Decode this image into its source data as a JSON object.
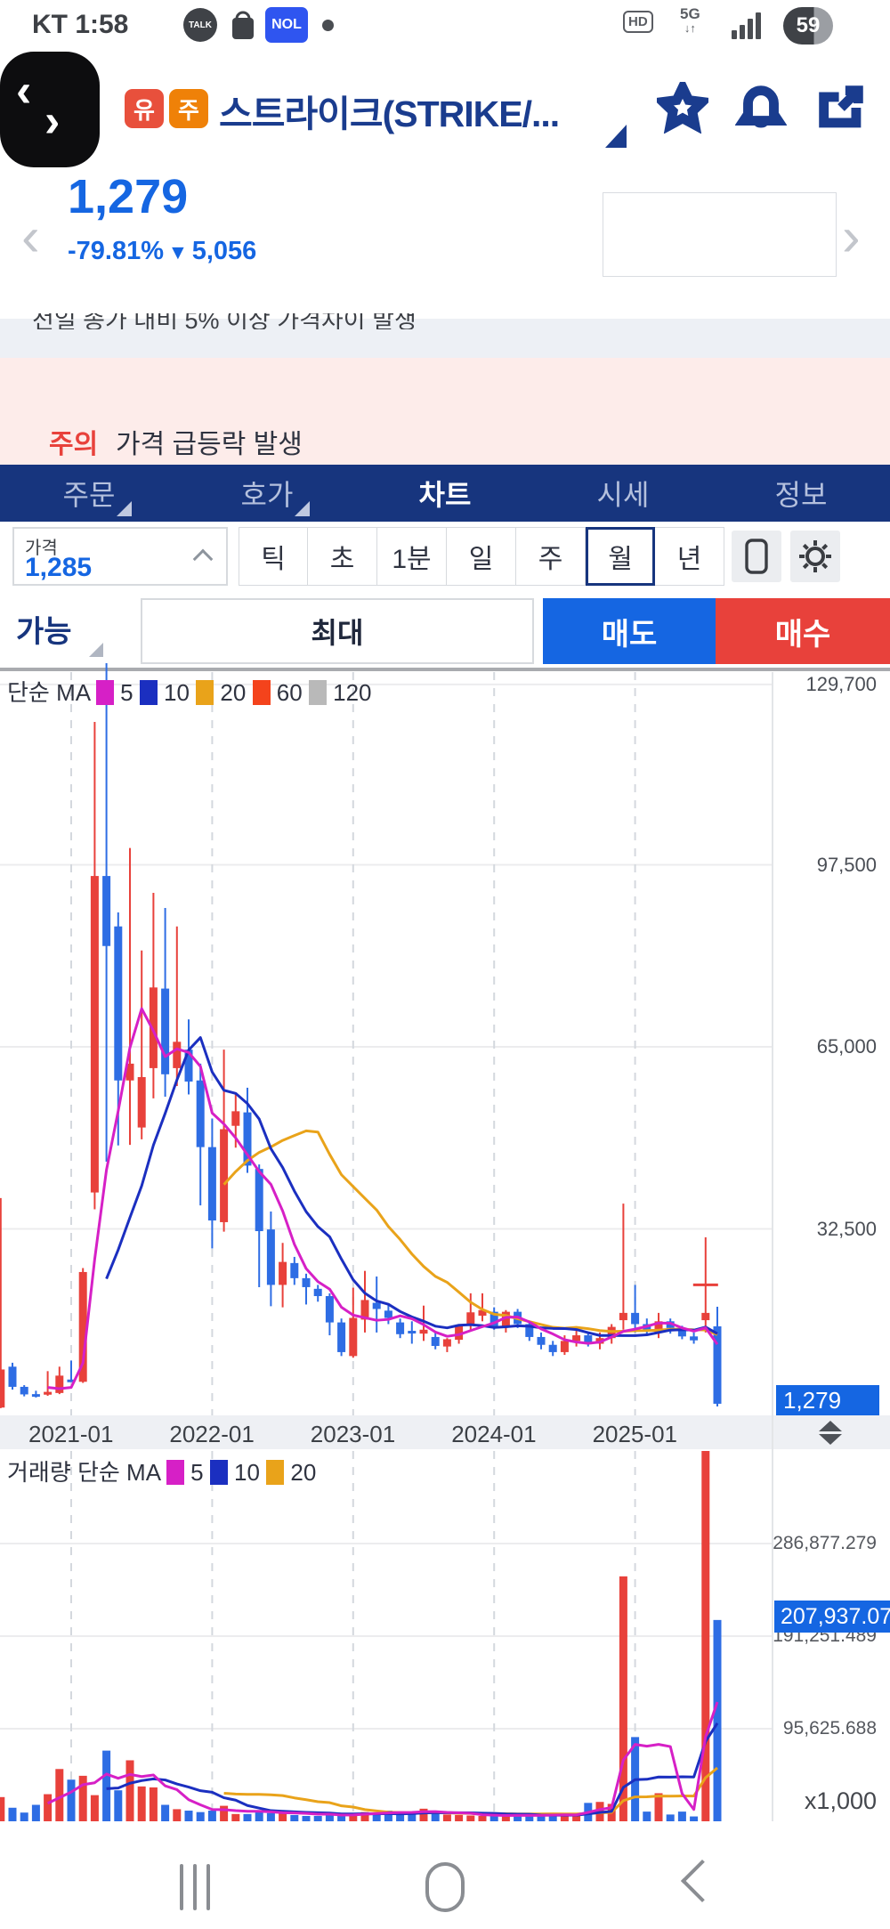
{
  "status_bar": {
    "carrier_time": "KT 1:58",
    "talk": "TALK",
    "nol": "NOL",
    "hd": "HD",
    "network": "5G",
    "battery": "59"
  },
  "header": {
    "market_badge": "유",
    "stock_badge": "주",
    "title": "스트라이크(STRIKE/..."
  },
  "price_header": {
    "price": "1,279",
    "change_pct": "-79.81%",
    "down_arrow": "▼",
    "change_amt": "5,056"
  },
  "notices": {
    "clipped_text": "전일 종가 대비 5% 이상 가격차이 발생",
    "caution_badge": "주의",
    "caution_text": "가격 급등락 발생"
  },
  "tabs": [
    {
      "label": "주문",
      "caret": true
    },
    {
      "label": "호가",
      "caret": true
    },
    {
      "label": "차트",
      "active": true
    },
    {
      "label": "시세"
    },
    {
      "label": "정보"
    }
  ],
  "controls": {
    "price_label": "가격",
    "price_value": "1,285",
    "timeframes": [
      "틱",
      "초",
      "1분",
      "일",
      "주",
      "월",
      "년"
    ],
    "selected_timeframe": "월",
    "avail_label": "가능",
    "max_label": "최대",
    "sell_label": "매도",
    "buy_label": "매수"
  },
  "colors": {
    "accent_blue": "#1566e2",
    "up_red": "#e8413b",
    "down_blue": "#2e6de4",
    "nav_navy": "#17357e",
    "ma5": "#d620c6",
    "ma10": "#1b2fc0",
    "ma20": "#e9a31a",
    "ma60": "#f4431c",
    "ma120": "#b9b9b9",
    "grid": "#ececee",
    "dash": "#d4d8de"
  },
  "chart_data": {
    "type": "candlestick+volume",
    "price_legend": {
      "title": "단순 MA",
      "items": [
        {
          "label": "5",
          "color": "#d620c6"
        },
        {
          "label": "10",
          "color": "#1b2fc0"
        },
        {
          "label": "20",
          "color": "#e9a31a"
        },
        {
          "label": "60",
          "color": "#f4431c"
        },
        {
          "label": "120",
          "color": "#b9b9b9"
        }
      ]
    },
    "volume_legend": {
      "title": "거래량 단순 MA",
      "items": [
        {
          "label": "5",
          "color": "#d620c6"
        },
        {
          "label": "10",
          "color": "#1b2fc0"
        },
        {
          "label": "20",
          "color": "#e9a31a"
        }
      ]
    },
    "price_axis": {
      "labels": [
        "129,700",
        "97,500",
        "65,000",
        "32,500"
      ],
      "values": [
        129700,
        97500,
        65000,
        32500
      ],
      "current_label": "1,279",
      "current_value": 1279
    },
    "x_axis": {
      "labels": [
        "2021-01",
        "2022-01",
        "2023-01",
        "2024-01",
        "2025-01"
      ],
      "month_indices": [
        6,
        18,
        30,
        42,
        54
      ]
    },
    "volume_axis": {
      "labels": [
        "286,877.279",
        "191,251.489",
        "95,625.688"
      ],
      "values": [
        286877.279,
        191251.489,
        95625.688
      ],
      "current_label": "207,937.079",
      "current_value": 207937.079,
      "unit": "x1,000"
    },
    "open_tick": {
      "index": 60,
      "value": 22500
    },
    "months": [
      [
        "2020-07",
        600,
        38000,
        500,
        7400,
        25000
      ],
      [
        "2020-08",
        7900,
        8600,
        3800,
        4300,
        14000
      ],
      [
        "2020-09",
        4300,
        4600,
        2600,
        2950,
        9000
      ],
      [
        "2020-10",
        3000,
        3600,
        2400,
        2900,
        17000
      ],
      [
        "2020-11",
        2900,
        7100,
        2700,
        3400,
        28000
      ],
      [
        "2020-12",
        3200,
        7900,
        3000,
        6300,
        54000
      ],
      [
        "2021-01",
        5600,
        9000,
        5200,
        5400,
        43000
      ],
      [
        "2021-02",
        5200,
        25500,
        5000,
        24800,
        47000
      ],
      [
        "2021-03",
        39000,
        123000,
        36000,
        95500,
        27000
      ],
      [
        "2021-04",
        95500,
        133500,
        44500,
        83000,
        73000
      ],
      [
        "2021-05",
        86500,
        89000,
        47400,
        59000,
        32000
      ],
      [
        "2021-06",
        59000,
        100500,
        47500,
        62000,
        63000
      ],
      [
        "2021-07",
        50600,
        82200,
        48500,
        59600,
        36000
      ],
      [
        "2021-08",
        61200,
        92500,
        55800,
        75600,
        35000
      ],
      [
        "2021-09",
        75400,
        89800,
        56100,
        60100,
        17000
      ],
      [
        "2021-10",
        61200,
        86500,
        58000,
        65900,
        12500
      ],
      [
        "2021-11",
        64500,
        69900,
        56500,
        58800,
        11000
      ],
      [
        "2021-12",
        59000,
        62000,
        36700,
        47100,
        9500
      ],
      [
        "2022-01",
        47100,
        52200,
        29000,
        34000,
        11000
      ],
      [
        "2022-02",
        33700,
        64500,
        32000,
        50300,
        16000
      ],
      [
        "2022-03",
        50900,
        56500,
        47000,
        53500,
        7500
      ],
      [
        "2022-04",
        53300,
        57700,
        42500,
        43800,
        7500
      ],
      [
        "2022-05",
        43200,
        44000,
        22100,
        32100,
        9500
      ],
      [
        "2022-06",
        32400,
        35600,
        18700,
        22500,
        8500
      ],
      [
        "2022-07",
        22500,
        30000,
        18500,
        26600,
        11000
      ],
      [
        "2022-08",
        26400,
        27500,
        22500,
        23700,
        6500
      ],
      [
        "2022-09",
        23700,
        24500,
        19000,
        22100,
        5500
      ],
      [
        "2022-10",
        21800,
        22500,
        19500,
        20500,
        5500
      ],
      [
        "2022-11",
        20500,
        21000,
        13500,
        15800,
        8000
      ],
      [
        "2022-12",
        15800,
        16500,
        9800,
        10500,
        6500
      ],
      [
        "2023-01",
        9800,
        22000,
        9500,
        16600,
        7500
      ],
      [
        "2023-02",
        16300,
        25000,
        14000,
        19800,
        9500
      ],
      [
        "2023-03",
        19300,
        24000,
        14000,
        18200,
        8500
      ],
      [
        "2023-04",
        17900,
        19000,
        15500,
        16600,
        11000
      ],
      [
        "2023-05",
        15800,
        16500,
        13000,
        13700,
        9000
      ],
      [
        "2023-06",
        14300,
        16000,
        12000,
        14000,
        8000
      ],
      [
        "2023-07",
        13800,
        18800,
        12500,
        14500,
        13000
      ],
      [
        "2023-08",
        13200,
        14000,
        11000,
        11600,
        9000
      ],
      [
        "2023-09",
        11500,
        13000,
        10500,
        12800,
        7000
      ],
      [
        "2023-10",
        12700,
        15500,
        12000,
        15200,
        6500
      ],
      [
        "2023-11",
        15200,
        21000,
        14500,
        17600,
        6000
      ],
      [
        "2023-12",
        17000,
        21000,
        16000,
        18000,
        5500
      ],
      [
        "2024-01",
        17700,
        18500,
        14500,
        15000,
        6500
      ],
      [
        "2024-02",
        15000,
        18000,
        14000,
        17700,
        5500
      ],
      [
        "2024-03",
        17700,
        18200,
        14800,
        15500,
        7000
      ],
      [
        "2024-04",
        15500,
        16000,
        12500,
        13200,
        6000
      ],
      [
        "2024-05",
        13200,
        14000,
        11000,
        11800,
        5500
      ],
      [
        "2024-06",
        11800,
        12500,
        9800,
        10500,
        8000
      ],
      [
        "2024-07",
        10500,
        13500,
        10000,
        12500,
        7000
      ],
      [
        "2024-08",
        12500,
        14500,
        11500,
        13500,
        6500
      ],
      [
        "2024-09",
        13500,
        14000,
        11500,
        12000,
        19000
      ],
      [
        "2024-10",
        12000,
        14000,
        11000,
        13000,
        20000
      ],
      [
        "2024-11",
        13000,
        15500,
        12000,
        15000,
        18000
      ],
      [
        "2024-12",
        16200,
        37000,
        14500,
        17500,
        253000
      ],
      [
        "2025-01",
        17500,
        22500,
        14000,
        15500,
        87000
      ],
      [
        "2025-02",
        15500,
        16500,
        13500,
        14500,
        10000
      ],
      [
        "2025-03",
        14000,
        17500,
        13000,
        16000,
        29000
      ],
      [
        "2025-04",
        16000,
        16500,
        13800,
        14800,
        7000
      ],
      [
        "2025-05",
        14800,
        15200,
        12800,
        13300,
        10000
      ],
      [
        "2025-06",
        13300,
        14000,
        12000,
        12600,
        5000
      ],
      [
        "2025-07",
        16200,
        31000,
        14000,
        17500,
        386000
      ],
      [
        "2025-08",
        15100,
        18600,
        800,
        1279,
        207937
      ]
    ],
    "sparkline": {
      "points": [
        [
          0,
          0.06
        ],
        [
          0.01,
          0.16
        ],
        [
          0.02,
          0.3
        ],
        [
          0.035,
          0.44
        ],
        [
          0.05,
          0.54
        ],
        [
          0.07,
          0.61
        ],
        [
          0.09,
          0.65
        ],
        [
          0.11,
          0.71
        ],
        [
          0.13,
          0.74
        ],
        [
          0.155,
          0.8
        ],
        [
          0.175,
          0.83
        ],
        [
          0.2,
          0.88
        ],
        [
          0.22,
          0.93
        ],
        [
          0.235,
          0.97
        ]
      ],
      "ref_y": 0.07
    }
  },
  "bottom_nav": {
    "recents": "recents",
    "home": "home",
    "back": "back"
  }
}
